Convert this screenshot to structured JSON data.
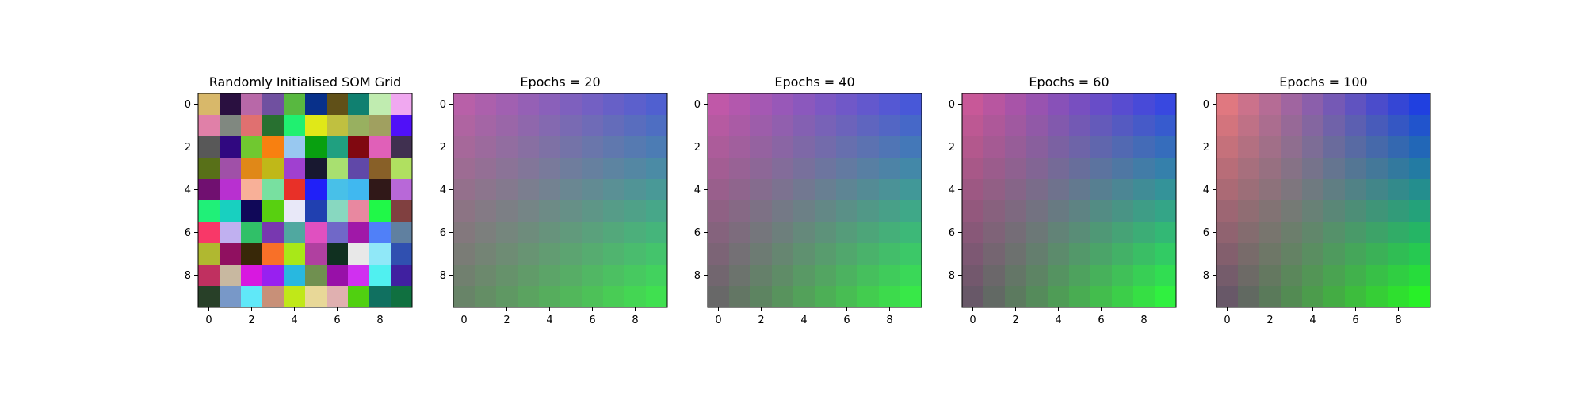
{
  "chart_data": [
    {
      "type": "heatmap",
      "title": "Randomly Initialised SOM Grid",
      "x_ticks": [
        "0",
        "2",
        "4",
        "6",
        "8"
      ],
      "y_ticks": [
        "0",
        "2",
        "4",
        "6",
        "8"
      ],
      "xlim": [
        -0.5,
        9.5
      ],
      "ylim": [
        9.5,
        -0.5
      ],
      "grid": false,
      "cells": [
        [
          "#d8b86a",
          "#2a1040",
          "#b868a8",
          "#7050a0",
          "#58b840",
          "#08308a",
          "#605018",
          "#108070",
          "#c0ecb0",
          "#f0a8f0"
        ],
        [
          "#e080a8",
          "#808880",
          "#e07070",
          "#287030",
          "#20f070",
          "#e0e818",
          "#c0c040",
          "#98b060",
          "#a0a060",
          "#5010f8"
        ],
        [
          "#585858",
          "#300880",
          "#70c830",
          "#f88010",
          "#98c8f0",
          "#08a010",
          "#20a080",
          "#800810",
          "#e060b8",
          "#403050"
        ],
        [
          "#587018",
          "#a050a8",
          "#e08818",
          "#c0b818",
          "#a040d0",
          "#181830",
          "#a8e070",
          "#6048a8",
          "#886028",
          "#b0e060"
        ],
        [
          "#701070",
          "#b830d0",
          "#f8b098",
          "#78e0a0",
          "#e83028",
          "#2020f8",
          "#48c0e8",
          "#40b8f0",
          "#301818",
          "#b868d8"
        ],
        [
          "#20f078",
          "#18d0c0",
          "#100858",
          "#58d010",
          "#e8e8f8",
          "#2040b0",
          "#88d8c0",
          "#e888a0",
          "#20f848",
          "#804040"
        ],
        [
          "#f83868",
          "#c0b0f0",
          "#30c068",
          "#7838b0",
          "#50a8a0",
          "#e050c0",
          "#7068c8",
          "#a018a8",
          "#5080f8",
          "#6080a0"
        ],
        [
          "#b0b830",
          "#901060",
          "#382808",
          "#f87028",
          "#a8e818",
          "#b040a0",
          "#103020",
          "#e8e8e8",
          "#90e8f8",
          "#3050b0"
        ],
        [
          "#c03060",
          "#c8b8a0",
          "#d818e0",
          "#9820f0",
          "#28b8e0",
          "#709050",
          "#9810a8",
          "#d030f0",
          "#50f0f0",
          "#4020a0"
        ],
        [
          "#284028",
          "#7898c8",
          "#60e8f8",
          "#c89078",
          "#c0e818",
          "#e8d898",
          "#e0b0b0",
          "#50d010",
          "#107060",
          "#107040"
        ]
      ]
    },
    {
      "type": "heatmap",
      "title": "Epochs = 20",
      "x_ticks": [
        "0",
        "2",
        "4",
        "6",
        "8"
      ],
      "y_ticks": [
        "0",
        "2",
        "4",
        "6",
        "8"
      ],
      "xlim": [
        -0.5,
        9.5
      ],
      "ylim": [
        9.5,
        -0.5
      ],
      "grid": false,
      "corners": {
        "top_left": "#b860a8",
        "top_right": "#5060d0",
        "bottom_left": "#688468",
        "bottom_right": "#40e050"
      }
    },
    {
      "type": "heatmap",
      "title": "Epochs = 40",
      "x_ticks": [
        "0",
        "2",
        "4",
        "6",
        "8"
      ],
      "y_ticks": [
        "0",
        "2",
        "4",
        "6",
        "8"
      ],
      "xlim": [
        -0.5,
        9.5
      ],
      "ylim": [
        9.5,
        -0.5
      ],
      "grid": false,
      "corners": {
        "top_left": "#c058a8",
        "top_right": "#4858d8",
        "bottom_left": "#686868",
        "bottom_right": "#38e848"
      }
    },
    {
      "type": "heatmap",
      "title": "Epochs = 60",
      "x_ticks": [
        "0",
        "2",
        "4",
        "6",
        "8"
      ],
      "y_ticks": [
        "0",
        "2",
        "4",
        "6",
        "8"
      ],
      "xlim": [
        -0.5,
        9.5
      ],
      "ylim": [
        9.5,
        -0.5
      ],
      "grid": false,
      "corners": {
        "top_left": "#c85898",
        "top_right": "#3848e0",
        "bottom_left": "#685868",
        "bottom_right": "#30f040"
      }
    },
    {
      "type": "heatmap",
      "title": "Epochs = 100",
      "x_ticks": [
        "0",
        "2",
        "4",
        "6",
        "8"
      ],
      "y_ticks": [
        "0",
        "2",
        "4",
        "6",
        "8"
      ],
      "xlim": [
        -0.5,
        9.5
      ],
      "ylim": [
        9.5,
        -0.5
      ],
      "grid": false,
      "corners": {
        "top_left": "#e07880",
        "top_right": "#2040e0",
        "bottom_left": "#685868",
        "bottom_right": "#28f028"
      }
    }
  ]
}
